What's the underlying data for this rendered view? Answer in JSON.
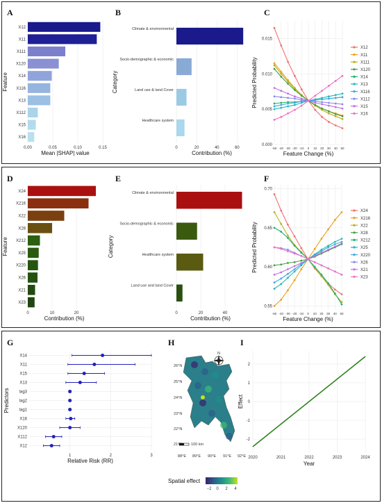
{
  "chart_data": [
    {
      "id": "A",
      "panel_label": "A",
      "type": "bar",
      "orientation": "horizontal",
      "categories": [
        "X12",
        "X11",
        "X111",
        "X120",
        "X14",
        "X116",
        "X13",
        "X112",
        "X15",
        "X16"
      ],
      "values": [
        0.145,
        0.138,
        0.075,
        0.062,
        0.048,
        0.045,
        0.045,
        0.02,
        0.016,
        0.013
      ],
      "colors": [
        "#1a1a8c",
        "#1f1f96",
        "#7b7fcc",
        "#8a90d2",
        "#90a4dc",
        "#96b4e0",
        "#9cbfe4",
        "#a9d4ea",
        "#b0dced",
        "#b8e0ef"
      ],
      "xlabel": "Mean |SHAP| value",
      "ylabel": "Feature",
      "xlim": [
        0,
        0.15
      ],
      "xticks": [
        "0.00",
        "0.05",
        "0.10",
        "0.15"
      ]
    },
    {
      "id": "B",
      "panel_label": "B",
      "type": "bar",
      "orientation": "horizontal",
      "categories": [
        "Climate & environmental",
        "Socio-demographic & economic",
        "Land use & land Cover",
        "Healthcare system"
      ],
      "values": [
        66,
        15,
        10,
        8
      ],
      "colors": [
        "#1a1a8c",
        "#8aaad6",
        "#9ccae4",
        "#aad8ec"
      ],
      "xlabel": "Contribution (%)",
      "ylabel": "Category",
      "xlim": [
        0,
        70
      ],
      "xticks": [
        "0",
        "20",
        "40",
        "60"
      ]
    },
    {
      "id": "C",
      "panel_label": "C",
      "type": "line",
      "x": [
        -50,
        -40,
        -30,
        -20,
        -10,
        0,
        10,
        20,
        30,
        40,
        50
      ],
      "series": [
        {
          "name": "X12",
          "color": "#f07070",
          "values": [
            0.0165,
            0.014,
            0.0117,
            0.0097,
            0.0078,
            0.0062,
            0.0049,
            0.0039,
            0.0032,
            0.0027,
            0.0023
          ]
        },
        {
          "name": "X11",
          "color": "#e8a020",
          "values": [
            0.0115,
            0.0103,
            0.0091,
            0.008,
            0.007,
            0.0062,
            0.0056,
            0.0051,
            0.0047,
            0.0044,
            0.0041
          ]
        },
        {
          "name": "X111",
          "color": "#b8b020",
          "values": [
            0.0112,
            0.01,
            0.0089,
            0.0079,
            0.007,
            0.0062,
            0.0055,
            0.0049,
            0.0044,
            0.004,
            0.0036
          ]
        },
        {
          "name": "X120",
          "color": "#40a040",
          "values": [
            0.0107,
            0.0096,
            0.0086,
            0.0077,
            0.0069,
            0.0062,
            0.0056,
            0.0051,
            0.0047,
            0.0043,
            0.004
          ]
        },
        {
          "name": "X14",
          "color": "#20b070",
          "values": [
            0.0058,
            0.0059,
            0.006,
            0.006,
            0.0061,
            0.0062,
            0.0063,
            0.0064,
            0.0065,
            0.0066,
            0.0067
          ]
        },
        {
          "name": "X13",
          "color": "#20b8b8",
          "values": [
            0.005,
            0.0052,
            0.0054,
            0.0056,
            0.0059,
            0.0062,
            0.0064,
            0.0066,
            0.0068,
            0.007,
            0.0072
          ]
        },
        {
          "name": "X116",
          "color": "#40a8e0",
          "values": [
            0.0054,
            0.0056,
            0.0058,
            0.0059,
            0.0061,
            0.0062,
            0.0063,
            0.0064,
            0.0065,
            0.0066,
            0.0067
          ]
        },
        {
          "name": "X112",
          "color": "#8888ee",
          "values": [
            0.0068,
            0.0067,
            0.0066,
            0.0065,
            0.0063,
            0.0062,
            0.0061,
            0.006,
            0.0059,
            0.0058,
            0.0057
          ]
        },
        {
          "name": "X15",
          "color": "#c070e0",
          "values": [
            0.008,
            0.0076,
            0.0072,
            0.0068,
            0.0065,
            0.0062,
            0.0059,
            0.0057,
            0.0055,
            0.0053,
            0.0051
          ]
        },
        {
          "name": "X16",
          "color": "#ee70c0",
          "values": [
            0.0035,
            0.0039,
            0.0044,
            0.0049,
            0.0055,
            0.0062,
            0.0069,
            0.0076,
            0.0083,
            0.009,
            0.0097
          ]
        }
      ],
      "xlabel": "Feature Change (%)",
      "ylabel": "Predicted Probability",
      "ylim": [
        0,
        0.0175
      ],
      "yticks": [
        "0.000",
        "0.005",
        "0.010",
        "0.015"
      ],
      "xticks": [
        "-50",
        "-40",
        "-30",
        "-20",
        "-10",
        "0",
        "10",
        "20",
        "30",
        "40",
        "50"
      ],
      "legend": "right"
    },
    {
      "id": "D",
      "panel_label": "D",
      "type": "bar",
      "orientation": "horizontal",
      "categories": [
        "X24",
        "X216",
        "X22",
        "X28",
        "X212",
        "X25",
        "X220",
        "X26",
        "X21",
        "X23"
      ],
      "values": [
        28,
        25,
        15,
        10,
        5,
        4.5,
        4.2,
        4,
        3,
        2.8
      ],
      "colors": [
        "#aa1010",
        "#8a3010",
        "#7a4010",
        "#6a5010",
        "#2a6010",
        "#285a10",
        "#265510",
        "#245010",
        "#224a10",
        "#204510"
      ],
      "xlabel": "Contribution (%)",
      "ylabel": "Feature",
      "xlim": [
        0,
        30
      ],
      "xticks": [
        "0",
        "10",
        "20"
      ]
    },
    {
      "id": "E",
      "panel_label": "E",
      "type": "bar",
      "orientation": "horizontal",
      "categories": [
        "Climate & environmental",
        "Socio-demographic & economic",
        "Healthcare system",
        "Land use and land Cover"
      ],
      "values": [
        54,
        17,
        22,
        5
      ],
      "colors": [
        "#aa1010",
        "#3a5a10",
        "#5a5a10",
        "#2a5010"
      ],
      "xlabel": "Contribution (%)",
      "ylabel": "Category",
      "xlim": [
        0,
        56
      ],
      "xticks": [
        "0",
        "20",
        "40"
      ]
    },
    {
      "id": "F",
      "panel_label": "F",
      "type": "line",
      "x": [
        -50,
        -40,
        -30,
        -20,
        -10,
        0,
        10,
        20,
        30,
        40,
        50
      ],
      "series": [
        {
          "name": "X24",
          "color": "#f07070",
          "values": [
            0.693,
            0.672,
            0.654,
            0.639,
            0.624,
            0.61,
            0.598,
            0.588,
            0.579,
            0.571,
            0.565
          ]
        },
        {
          "name": "X216",
          "color": "#e8a020",
          "values": [
            0.55,
            0.558,
            0.57,
            0.583,
            0.597,
            0.61,
            0.623,
            0.636,
            0.648,
            0.66,
            0.67
          ]
        },
        {
          "name": "X22",
          "color": "#b8b020",
          "values": [
            0.67,
            0.655,
            0.64,
            0.628,
            0.619,
            0.61,
            0.599,
            0.588,
            0.577,
            0.565,
            0.555
          ]
        },
        {
          "name": "X28",
          "color": "#40a040",
          "values": [
            0.602,
            0.603,
            0.605,
            0.606,
            0.608,
            0.61,
            0.613,
            0.617,
            0.621,
            0.625,
            0.629
          ]
        },
        {
          "name": "X212",
          "color": "#20b070",
          "values": [
            0.65,
            0.645,
            0.637,
            0.627,
            0.618,
            0.61,
            0.6,
            0.59,
            0.579,
            0.566,
            0.552
          ]
        },
        {
          "name": "X25",
          "color": "#20b8b8",
          "values": [
            0.572,
            0.578,
            0.586,
            0.594,
            0.602,
            0.61,
            0.616,
            0.622,
            0.627,
            0.632,
            0.636
          ]
        },
        {
          "name": "X220",
          "color": "#40a8e0",
          "values": [
            0.58,
            0.585,
            0.591,
            0.597,
            0.604,
            0.61,
            0.615,
            0.62,
            0.625,
            0.629,
            0.632
          ]
        },
        {
          "name": "X26",
          "color": "#8888ee",
          "values": [
            0.625,
            0.624,
            0.622,
            0.618,
            0.614,
            0.61,
            0.606,
            0.602,
            0.598,
            0.594,
            0.59
          ]
        },
        {
          "name": "X21",
          "color": "#c070e0",
          "values": [
            0.59,
            0.593,
            0.597,
            0.601,
            0.605,
            0.61,
            0.614,
            0.618,
            0.622,
            0.626,
            0.63
          ]
        },
        {
          "name": "X23",
          "color": "#ee70c0",
          "values": [
            0.625,
            0.623,
            0.62,
            0.617,
            0.614,
            0.61,
            0.606,
            0.602,
            0.598,
            0.594,
            0.59
          ]
        }
      ],
      "xlabel": "Feature Change (%)",
      "ylabel": "Predicted Probability",
      "ylim": [
        0.545,
        0.705
      ],
      "yticks": [
        "0.55",
        "0.60",
        "0.65",
        "0.70"
      ],
      "xticks": [
        "-50",
        "-40",
        "-30",
        "-20",
        "-10",
        "0",
        "10",
        "20",
        "30",
        "40",
        "50"
      ],
      "legend": "right"
    },
    {
      "id": "G",
      "panel_label": "G",
      "type": "scatter",
      "subtype": "forest",
      "categories": [
        "X14",
        "X11",
        "X15",
        "X13",
        "lag3",
        "lag2",
        "lag1",
        "X16",
        "X120",
        "X112",
        "X12"
      ],
      "values": [
        1.8,
        1.6,
        1.35,
        1.25,
        1.0,
        1.0,
        1.0,
        1.02,
        1.0,
        0.6,
        0.55
      ],
      "lower": [
        1.05,
        0.95,
        0.95,
        0.9,
        0.97,
        0.97,
        0.97,
        0.9,
        0.75,
        0.4,
        0.35
      ],
      "upper": [
        3.0,
        2.6,
        1.85,
        1.65,
        1.03,
        1.03,
        1.03,
        1.12,
        1.25,
        0.8,
        0.75
      ],
      "color": "#2222bb",
      "xlabel": "Relative Risk (RR)",
      "ylabel": "Predictors",
      "xlim": [
        0,
        3
      ],
      "xticks": [
        "1",
        "2",
        "3"
      ]
    },
    {
      "id": "H",
      "panel_label": "H",
      "type": "heatmap",
      "subtype": "map",
      "lat_ticks": [
        "26°N",
        "25°N",
        "24°N",
        "23°N",
        "22°N",
        "21°N"
      ],
      "lon_ticks": [
        "88°E",
        "89°E",
        "90°E",
        "91°E",
        "92°E"
      ],
      "scale_text": "100 km",
      "north_text": "N",
      "legend_title": "Spatial effect",
      "legend_ticks": [
        "−2",
        "0",
        "2",
        "4"
      ],
      "colormap": [
        "#3b1f6b",
        "#2c5c8a",
        "#218f8d",
        "#3fbc73",
        "#c8e020"
      ]
    },
    {
      "id": "I",
      "panel_label": "I",
      "type": "line",
      "x": [
        2020,
        2024
      ],
      "series": [
        {
          "color": "#2e7d1e",
          "values": [
            -2.4,
            2.4
          ]
        }
      ],
      "band_color": "#c6f5dd",
      "xlabel": "Year",
      "ylabel": "Effect",
      "xlim": [
        2020,
        2024
      ],
      "ylim": [
        -2.7,
        2.7
      ],
      "xticks": [
        "2020",
        "2021",
        "2022",
        "2023",
        "2024"
      ],
      "yticks": [
        "-2",
        "-1",
        "0",
        "1",
        "2"
      ]
    }
  ]
}
